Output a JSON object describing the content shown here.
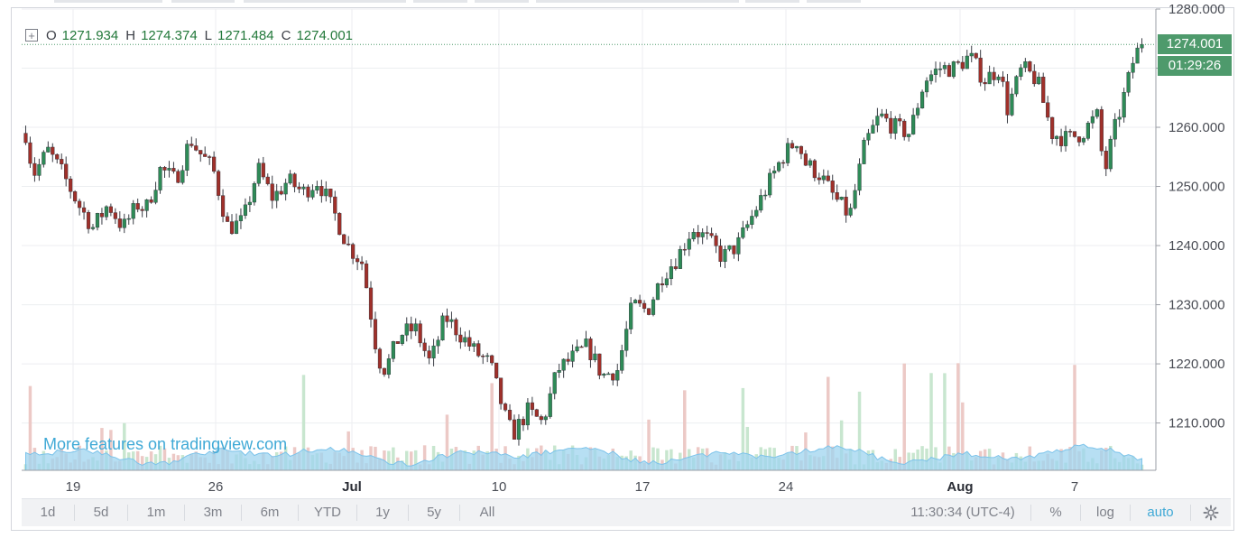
{
  "legend": {
    "o_label": "O",
    "o_value": "1271.934",
    "h_label": "H",
    "h_value": "1274.374",
    "l_label": "L",
    "l_value": "1271.484",
    "c_label": "C",
    "c_value": "1274.001"
  },
  "last_price_badge": "1274.001",
  "countdown_badge": "01:29:26",
  "watermark": "More features on tradingview.com",
  "toolbar": {
    "timeframes": [
      "1d",
      "5d",
      "1m",
      "3m",
      "6m",
      "YTD",
      "1y",
      "5y",
      "All"
    ],
    "clock": "11:30:34 (UTC-4)",
    "percent": "%",
    "log": "log",
    "auto": "auto"
  },
  "colors": {
    "up": "#2e8b57",
    "down": "#a0302a",
    "grid": "#eceef1",
    "badge": "#4e9a6c",
    "volume_area": "#9fd4ef",
    "accent_blue": "#3fa9d6"
  },
  "chart_data": {
    "type": "candlestick",
    "symbol_timeframe": "hourly",
    "y_axis": {
      "ticks": [
        1210,
        1220,
        1230,
        1240,
        1250,
        1260,
        1270,
        1280
      ],
      "tick_labels": [
        "1210.000",
        "1220.000",
        "1230.000",
        "1240.000",
        "1250.000",
        "1260.000",
        "1270.000",
        "1280.000"
      ],
      "range": [
        1202,
        1280
      ],
      "side": "right"
    },
    "x_axis": {
      "tick_labels": [
        "19",
        "26",
        "Jul",
        "10",
        "17",
        "24",
        "Aug",
        "7"
      ],
      "bold_labels": [
        "Jul",
        "Aug"
      ],
      "range": [
        "Jun 15",
        "Aug 9"
      ]
    },
    "last_price": 1274.001,
    "price_path": [
      [
        0,
        1259
      ],
      [
        1,
        1252
      ],
      [
        3,
        1256
      ],
      [
        5,
        1252
      ],
      [
        7,
        1247
      ],
      [
        9,
        1243
      ],
      [
        11,
        1247
      ],
      [
        13,
        1243
      ],
      [
        15,
        1247
      ],
      [
        16,
        1246
      ],
      [
        18,
        1253
      ],
      [
        20,
        1251
      ],
      [
        22,
        1258
      ],
      [
        23,
        1256
      ],
      [
        25,
        1253
      ],
      [
        27,
        1243
      ],
      [
        29,
        1244
      ],
      [
        31,
        1253
      ],
      [
        33,
        1248
      ],
      [
        35,
        1251
      ],
      [
        37,
        1249
      ],
      [
        39,
        1251
      ],
      [
        41,
        1246
      ],
      [
        43,
        1240
      ],
      [
        45,
        1237
      ],
      [
        47,
        1221
      ],
      [
        48,
        1219
      ],
      [
        50,
        1225
      ],
      [
        52,
        1226
      ],
      [
        54,
        1220
      ],
      [
        56,
        1228
      ],
      [
        58,
        1225
      ],
      [
        60,
        1222
      ],
      [
        62,
        1220
      ],
      [
        64,
        1211
      ],
      [
        65,
        1208
      ],
      [
        67,
        1212
      ],
      [
        69,
        1210
      ],
      [
        71,
        1219
      ],
      [
        73,
        1221
      ],
      [
        75,
        1223
      ],
      [
        77,
        1218
      ],
      [
        79,
        1219
      ],
      [
        81,
        1230
      ],
      [
        83,
        1229
      ],
      [
        85,
        1235
      ],
      [
        87,
        1238
      ],
      [
        89,
        1243
      ],
      [
        91,
        1241
      ],
      [
        93,
        1238
      ],
      [
        95,
        1240
      ],
      [
        97,
        1245
      ],
      [
        99,
        1250
      ],
      [
        101,
        1255
      ],
      [
        103,
        1258
      ],
      [
        104,
        1254
      ],
      [
        106,
        1252
      ],
      [
        108,
        1248
      ],
      [
        110,
        1245
      ],
      [
        112,
        1257
      ],
      [
        114,
        1262
      ],
      [
        116,
        1260
      ],
      [
        118,
        1259
      ],
      [
        120,
        1268
      ],
      [
        122,
        1270
      ],
      [
        124,
        1270
      ],
      [
        126,
        1272
      ],
      [
        128,
        1268
      ],
      [
        130,
        1270
      ],
      [
        131,
        1263
      ],
      [
        133,
        1270
      ],
      [
        135,
        1268
      ],
      [
        137,
        1259
      ],
      [
        139,
        1258
      ],
      [
        141,
        1259
      ],
      [
        143,
        1262
      ],
      [
        144,
        1252
      ],
      [
        145,
        1258
      ],
      [
        147,
        1267
      ],
      [
        148,
        1272
      ],
      [
        149,
        1274
      ]
    ],
    "volume": {
      "style": "histogram with smoothed area overlay",
      "peak_values_units": "relative"
    }
  }
}
